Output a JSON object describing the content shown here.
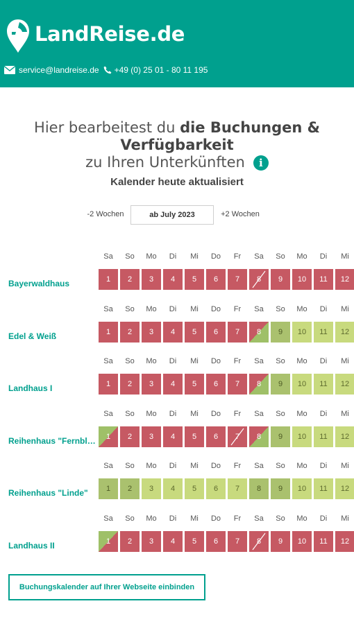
{
  "header": {
    "logo_text": "LandReise.de",
    "email": "service@landreise.de",
    "phone": "+49 (0) 25 01 - 80 11 195",
    "icons": {
      "logo": "pin-face-logo",
      "mail": "mail-icon",
      "phone": "phone-icon"
    },
    "background": "#00a08e"
  },
  "heading": {
    "prefix": "Hier bearbeitest du ",
    "bold": "die Buchungen & Verfügbarkeit",
    "line2": "zu Ihren Unterkünften",
    "info_icon_label": "i"
  },
  "calendar_status": "Kalender heute aktualisiert",
  "week_nav": {
    "prev_label": "-2 Wochen",
    "current_label": "ab July 2023",
    "next_label": "+2 Wochen"
  },
  "status_colors": {
    "booked": "#c65963",
    "free": "#c8da7e",
    "free_weekend": "#aac16e",
    "arrival_split": [
      "#9fc068",
      "#c65963"
    ],
    "departure_split": [
      "#c65963",
      "#9fc068"
    ]
  },
  "legend_codes": {
    "B": "booked",
    "F": "free",
    "W": "free-weekend",
    "A": "arrival",
    "D": "departure",
    "X": "changeover"
  },
  "day_names": [
    "Sa",
    "So",
    "Mo",
    "Di",
    "Mi",
    "Do",
    "Fr",
    "Sa",
    "So",
    "Mo",
    "Di",
    "Mi"
  ],
  "day_numbers": [
    "1",
    "2",
    "3",
    "4",
    "5",
    "6",
    "7",
    "8",
    "9",
    "10",
    "11",
    "12"
  ],
  "properties": [
    {
      "name": "Bayerwaldhaus",
      "statuses": [
        "B",
        "B",
        "B",
        "B",
        "B",
        "B",
        "B",
        "X",
        "B",
        "B",
        "B",
        "B"
      ]
    },
    {
      "name": "Edel & Weiß",
      "statuses": [
        "B",
        "B",
        "B",
        "B",
        "B",
        "B",
        "B",
        "D",
        "W",
        "F",
        "F",
        "F"
      ]
    },
    {
      "name": "Landhaus I",
      "statuses": [
        "B",
        "B",
        "B",
        "B",
        "B",
        "B",
        "B",
        "D",
        "W",
        "F",
        "F",
        "F"
      ]
    },
    {
      "name": "Reihenhaus \"Fernblick\"",
      "statuses": [
        "A",
        "B",
        "B",
        "B",
        "B",
        "B",
        "X",
        "D",
        "W",
        "F",
        "F",
        "F"
      ]
    },
    {
      "name": "Reihenhaus \"Linde\"",
      "statuses": [
        "W",
        "W",
        "F",
        "F",
        "F",
        "F",
        "F",
        "W",
        "W",
        "F",
        "F",
        "F"
      ]
    },
    {
      "name": "Landhaus II",
      "statuses": [
        "A",
        "B",
        "B",
        "B",
        "B",
        "B",
        "B",
        "X",
        "B",
        "B",
        "B",
        "B"
      ]
    }
  ],
  "embed_button_label": "Buchungskalender auf Ihrer Webseite einbinden"
}
